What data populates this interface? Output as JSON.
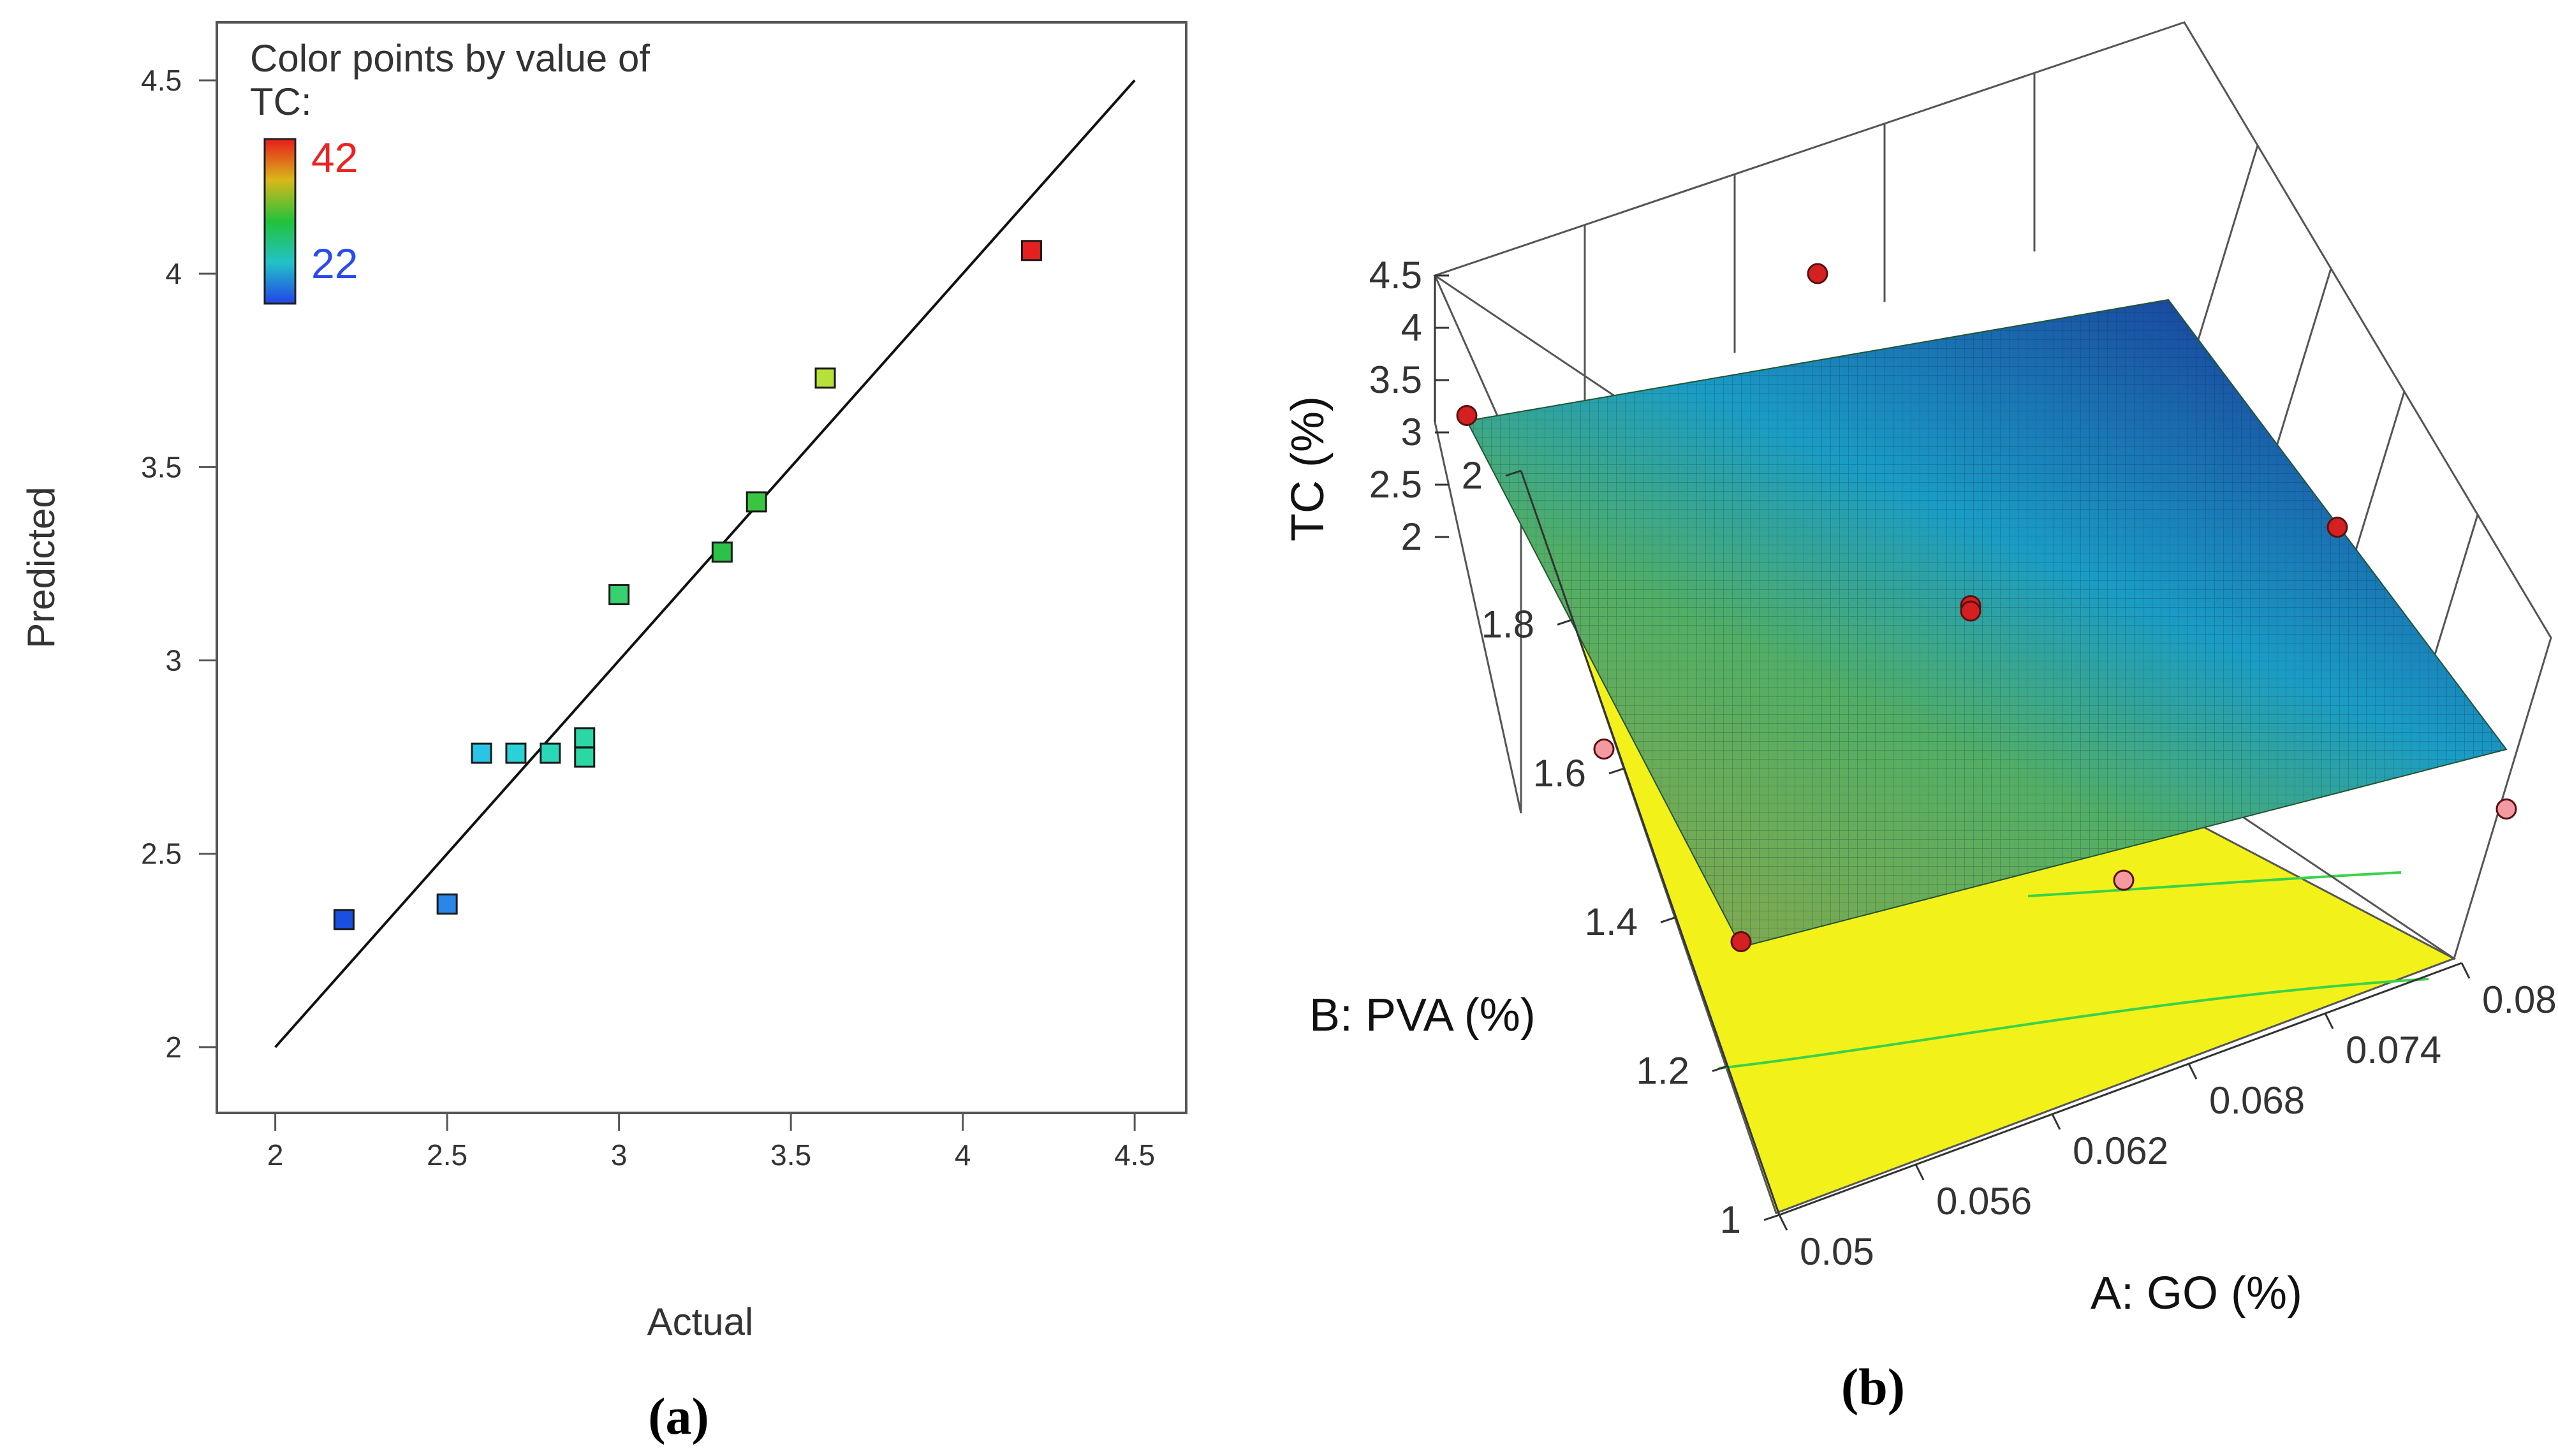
{
  "chart_data": [
    {
      "panel": "(a)",
      "type": "scatter",
      "xlabel": "Actual",
      "ylabel": "Predicted",
      "xlim": [
        1.83,
        4.65
      ],
      "ylim": [
        1.83,
        4.65
      ],
      "xticks": [
        "2",
        "2.5",
        "3",
        "3.5",
        "4",
        "4.5"
      ],
      "yticks": [
        "2",
        "2.5",
        "3",
        "3.5",
        "4",
        "4.5"
      ],
      "reference_line": [
        [
          2.0,
          2.0
        ],
        [
          4.5,
          4.5
        ]
      ],
      "legend": {
        "title_line1": "Color points by value of",
        "title_line2": "TC:",
        "max_label": "42",
        "min_label": "22",
        "max_color": "#ee2222",
        "min_color": "#2a4bf0"
      },
      "points": [
        {
          "x": 2.2,
          "y": 2.33,
          "color": "#1a4fe0"
        },
        {
          "x": 2.5,
          "y": 2.37,
          "color": "#2a86e8"
        },
        {
          "x": 2.6,
          "y": 2.76,
          "color": "#2ac4e6"
        },
        {
          "x": 2.7,
          "y": 2.76,
          "color": "#2ad2d8"
        },
        {
          "x": 2.8,
          "y": 2.76,
          "color": "#2ad8b8"
        },
        {
          "x": 2.9,
          "y": 2.8,
          "color": "#2ad8a6"
        },
        {
          "x": 2.9,
          "y": 2.75,
          "color": "#2ad8a6"
        },
        {
          "x": 3.0,
          "y": 3.17,
          "color": "#38d070"
        },
        {
          "x": 3.3,
          "y": 3.28,
          "color": "#2cc24a"
        },
        {
          "x": 3.4,
          "y": 3.41,
          "color": "#38c640"
        },
        {
          "x": 3.6,
          "y": 3.73,
          "color": "#b6e03a"
        },
        {
          "x": 4.2,
          "y": 4.06,
          "color": "#e52020"
        }
      ]
    },
    {
      "panel": "(b)",
      "type": "surface",
      "zlabel": "TC (%)",
      "xlabel": "A: GO (%)",
      "ylabel": "B: PVA (%)",
      "zticks": [
        "2",
        "2.5",
        "3",
        "3.5",
        "4",
        "4.5"
      ],
      "xticks": [
        "0.05",
        "0.056",
        "0.062",
        "0.068",
        "0.074",
        "0.08"
      ],
      "yticks": [
        "1",
        "1.2",
        "1.4",
        "1.6",
        "1.8",
        "2"
      ],
      "xlim": [
        0.05,
        0.08
      ],
      "ylim": [
        1,
        2
      ],
      "zlim": [
        2,
        4.5
      ],
      "corner_z": {
        "go0_pva1": 2.0,
        "go1_pva1": 2.15,
        "go0_pva2": 3.1,
        "go1_pva2": 3.0
      },
      "floor_color": "#f2f21a",
      "contour_color": "#3ad24a",
      "design_points": [
        {
          "go": 0.05,
          "pva": 1.0,
          "z": 2.05,
          "color": "#d42020"
        },
        {
          "go": 0.05,
          "pva": 2.0,
          "z": 3.15,
          "color": "#d42020"
        },
        {
          "go": 0.08,
          "pva": 1.5,
          "z": 2.55,
          "color": "#d42020"
        },
        {
          "go": 0.065,
          "pva": 1.5,
          "z": 2.55,
          "color": "#d42020"
        },
        {
          "go": 0.065,
          "pva": 1.5,
          "z": 2.5,
          "color": "#d42020"
        },
        {
          "go": 0.065,
          "pva": 2.0,
          "z": 3.85,
          "color": "#d42020"
        },
        {
          "go": 0.065,
          "pva": 1.0,
          "z": 1.78,
          "color": "#f39aa0"
        },
        {
          "go": 0.05,
          "pva": 1.5,
          "z": 1.95,
          "color": "#f39aa0"
        },
        {
          "go": 0.08,
          "pva": 1.0,
          "z": 1.6,
          "color": "#f39aa0"
        }
      ]
    }
  ],
  "captions": {
    "a": "(a)",
    "b": "(b)"
  }
}
